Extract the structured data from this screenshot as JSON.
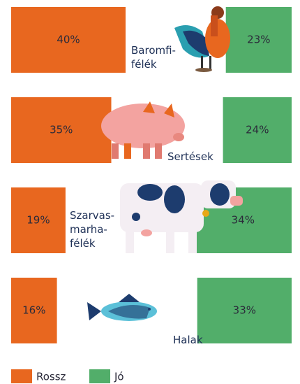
{
  "chart_data": {
    "type": "bar",
    "categories": [
      "Baromfi-\nfélék",
      "Sertések",
      "Szarvas-\nmarha-\nfélék",
      "Halak"
    ],
    "series": [
      {
        "name": "Rossz",
        "color": "#e8671f",
        "values": [
          40,
          35,
          19,
          16
        ],
        "value_labels": [
          "40%",
          "35%",
          "19%",
          "16%"
        ]
      },
      {
        "name": "Jó",
        "color": "#52ae6a",
        "values": [
          23,
          24,
          34,
          33
        ],
        "value_labels": [
          "23%",
          "24%",
          "34%",
          "33%"
        ]
      }
    ]
  }
}
